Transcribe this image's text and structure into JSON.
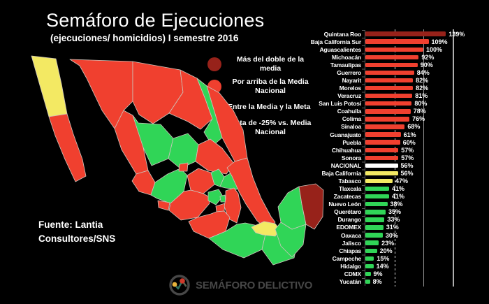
{
  "title": "Semáforo de Ejecuciones",
  "subtitle": "(ejecuciones/ homicidios) I semestre 2016",
  "source": {
    "line1": "Fuente: Lantia",
    "line2": "Consultores/SNS"
  },
  "footer_logo": {
    "text": "SEMÁFORO DELICTIVO"
  },
  "colors": {
    "double": "#97221a",
    "above": "#f0402f",
    "national": "#ffffff",
    "between": "#f3e963",
    "target": "#30d557",
    "background": "#000000",
    "logo_gray": "#474747",
    "logo_yellow": "#e8b33c",
    "logo_red": "#cd3a2b",
    "logo_teal": "#2e6e5e"
  },
  "legend": [
    {
      "category": "double",
      "label": "Más del doble de la media"
    },
    {
      "category": "above",
      "label": "Por arriba de la Media Nacional"
    },
    {
      "category": "between",
      "label": "Entre la Media y la Meta"
    },
    {
      "category": "target",
      "label": "Meta de -25% vs. Media Nacional"
    }
  ],
  "chart_data": {
    "type": "bar",
    "orientation": "horizontal",
    "title": "Semáforo de Ejecuciones",
    "xlabel": "",
    "ylabel": "",
    "xlim": [
      0,
      175
    ],
    "gridlines_pct": [
      50,
      100,
      150
    ],
    "legend_position": "upper-left",
    "grid": true,
    "categories": [
      "Quintana Roo",
      "Baja California Sur",
      "Aguascalientes",
      "Michoacán",
      "Tamaulipas",
      "Guerrero",
      "Nayarit",
      "Morelos",
      "Veracruz",
      "San Luis Potosí",
      "Coahuila",
      "Colima",
      "Sinaloa",
      "Guanajuato",
      "Puebla",
      "Chihuahua",
      "Sonora",
      "NACIONAL",
      "Baja California",
      "Tabasco",
      "Tlaxcala",
      "Zacatecas",
      "Nuevo León",
      "Querétaro",
      "Durango",
      "EDOMEX",
      "Oaxaca",
      "Jalisco",
      "Chiapas",
      "Campeche",
      "Hidalgo",
      "CDMX",
      "Yucatán"
    ],
    "values": [
      139,
      109,
      100,
      92,
      90,
      84,
      82,
      82,
      81,
      80,
      78,
      76,
      68,
      61,
      60,
      57,
      57,
      56,
      56,
      47,
      41,
      41,
      38,
      35,
      33,
      31,
      30,
      23,
      20,
      15,
      14,
      9,
      8
    ],
    "rows": [
      {
        "name": "Quintana Roo",
        "value": 139,
        "label": "139%",
        "category": "double"
      },
      {
        "name": "Baja California Sur",
        "value": 109,
        "label": "109%",
        "category": "above"
      },
      {
        "name": "Aguascalientes",
        "value": 100,
        "label": "100%",
        "category": "above"
      },
      {
        "name": "Michoacán",
        "value": 92,
        "label": "92%",
        "category": "above"
      },
      {
        "name": "Tamaulipas",
        "value": 90,
        "label": "90%",
        "category": "above"
      },
      {
        "name": "Guerrero",
        "value": 84,
        "label": "84%",
        "category": "above"
      },
      {
        "name": "Nayarit",
        "value": 82,
        "label": "82%",
        "category": "above"
      },
      {
        "name": "Morelos",
        "value": 82,
        "label": "82%",
        "category": "above"
      },
      {
        "name": "Veracruz",
        "value": 81,
        "label": "81%",
        "category": "above"
      },
      {
        "name": "San Luis Potosí",
        "value": 80,
        "label": "80%",
        "category": "above"
      },
      {
        "name": "Coahuila",
        "value": 78,
        "label": "78%",
        "category": "above"
      },
      {
        "name": "Colima",
        "value": 76,
        "label": "76%",
        "category": "above"
      },
      {
        "name": "Sinaloa",
        "value": 68,
        "label": "68%",
        "category": "above"
      },
      {
        "name": "Guanajuato",
        "value": 61,
        "label": "61%",
        "category": "above"
      },
      {
        "name": "Puebla",
        "value": 60,
        "label": "60%",
        "category": "above"
      },
      {
        "name": "Chihuahua",
        "value": 57,
        "label": "57%",
        "category": "above"
      },
      {
        "name": "Sonora",
        "value": 57,
        "label": "57%",
        "category": "above"
      },
      {
        "name": "NACIONAL",
        "value": 56,
        "label": "56%",
        "category": "national"
      },
      {
        "name": "Baja California",
        "value": 56,
        "label": "56%",
        "category": "between"
      },
      {
        "name": "Tabasco",
        "value": 47,
        "label": "47%",
        "category": "between"
      },
      {
        "name": "Tlaxcala",
        "value": 41,
        "label": "41%",
        "category": "target"
      },
      {
        "name": "Zacatecas",
        "value": 41,
        "label": "41%",
        "category": "target"
      },
      {
        "name": "Nuevo León",
        "value": 38,
        "label": "38%",
        "category": "target"
      },
      {
        "name": "Querétaro",
        "value": 35,
        "label": "35%",
        "category": "target"
      },
      {
        "name": "Durango",
        "value": 33,
        "label": "33%",
        "category": "target"
      },
      {
        "name": "EDOMEX",
        "value": 31,
        "label": "31%",
        "category": "target"
      },
      {
        "name": "Oaxaca",
        "value": 30,
        "label": "30%",
        "category": "target"
      },
      {
        "name": "Jalisco",
        "value": 23,
        "label": "23%",
        "category": "target"
      },
      {
        "name": "Chiapas",
        "value": 20,
        "label": "20%",
        "category": "target"
      },
      {
        "name": "Campeche",
        "value": 15,
        "label": "15%",
        "category": "target"
      },
      {
        "name": "Hidalgo",
        "value": 14,
        "label": "14%",
        "category": "target"
      },
      {
        "name": "CDMX",
        "value": 9,
        "label": "9%",
        "category": "target"
      },
      {
        "name": "Yucatán",
        "value": 8,
        "label": "8%",
        "category": "target"
      }
    ]
  }
}
